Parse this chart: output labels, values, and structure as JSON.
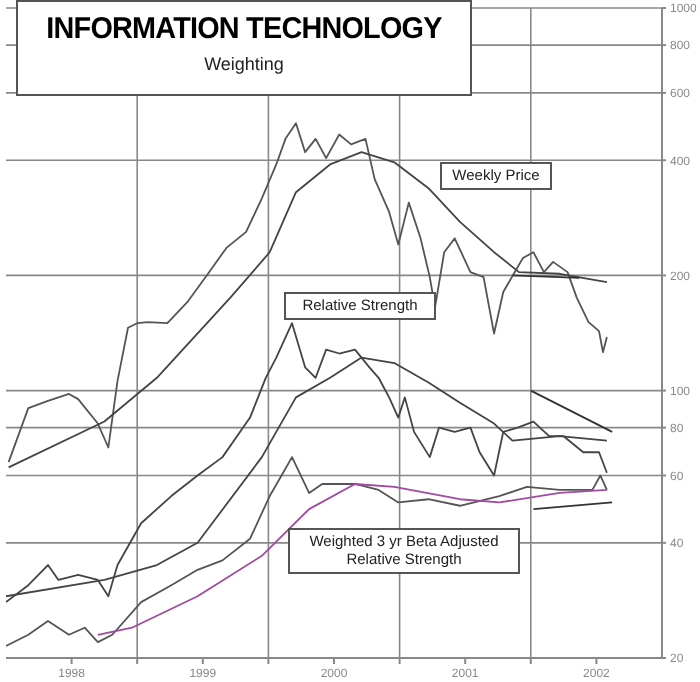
{
  "chart_data": {
    "type": "line",
    "title": "INFORMATION TECHNOLOGY",
    "subtitle": "Weighting",
    "log": "y",
    "grid": true,
    "xlim": [
      1998,
      2003
    ],
    "xticks": [
      {
        "value": 1998.5,
        "label": "1998"
      },
      {
        "value": 1999,
        "label": null
      },
      {
        "value": 1999.5,
        "label": "1999"
      },
      {
        "value": 2000,
        "label": null
      },
      {
        "value": 2000.5,
        "label": "2000"
      },
      {
        "value": 2001,
        "label": null
      },
      {
        "value": 2001.5,
        "label": "2001"
      },
      {
        "value": 2002,
        "label": null
      },
      {
        "value": 2002.5,
        "label": "2002"
      }
    ],
    "ylim": [
      20,
      1000
    ],
    "yticks": [
      20,
      40,
      60,
      80,
      100,
      200,
      400,
      600,
      800,
      1000
    ],
    "annotations": [
      "Weekly Price",
      "Relative Strength",
      "Weighted 3 yr Beta Adjusted Relative Strength"
    ],
    "series": [
      {
        "color": "#555555",
        "x": [
          1998.02,
          1998.17,
          1998.32,
          1998.48,
          1998.55,
          1998.7,
          1998.78,
          1998.85,
          1998.93,
          1999.0,
          1999.08,
          1999.23,
          1999.38,
          1999.53,
          1999.68,
          1999.83,
          1999.95,
          2000.06,
          2000.13,
          2000.21,
          2000.28,
          2000.36,
          2000.44,
          2000.54,
          2000.63,
          2000.74,
          2000.81,
          2000.92,
          2000.99,
          2001.07,
          2001.16,
          2001.23,
          2001.27,
          2001.34,
          2001.42,
          2001.54,
          2001.64,
          2001.72,
          2001.79,
          2001.94,
          2002.02,
          2002.1,
          2002.17,
          2002.28,
          2002.35,
          2002.44,
          2002.52,
          2002.55,
          2002.58
        ],
        "values": [
          65,
          90,
          94,
          98,
          95,
          82,
          71,
          106,
          146,
          150,
          151,
          150,
          170,
          200,
          236,
          260,
          318,
          390,
          455,
          500,
          420,
          455,
          405,
          467,
          440,
          455,
          357,
          293,
          241,
          310,
          250,
          198,
          165,
          230,
          250,
          204,
          198,
          141,
          181,
          222,
          230,
          204,
          217,
          204,
          175,
          151,
          143,
          126,
          138
        ]
      },
      {
        "color": "#444444",
        "x": [
          1998.02,
          1998.75,
          1999.15,
          1999.71,
          2000.01,
          2000.21,
          2000.47,
          2000.71,
          2000.96,
          2001.22,
          2001.46,
          2001.72,
          2001.91,
          2002.22,
          2002.58
        ],
        "values": [
          63,
          83,
          108,
          175,
          230,
          330,
          390,
          420,
          395,
          338,
          276,
          230,
          204,
          202,
          192
        ]
      },
      {
        "color": "#444444",
        "x": [
          1998.0,
          1998.17,
          1998.32,
          1998.4,
          1998.55,
          1998.7,
          1998.78,
          1998.85,
          1999.03,
          1999.26,
          1999.46,
          1999.65,
          1999.86,
          1999.98,
          2000.06,
          2000.18,
          2000.28,
          2000.36,
          2000.44,
          2000.54,
          2000.66,
          2000.77,
          2000.84,
          2000.92,
          2000.99,
          2001.04,
          2001.11,
          2001.23,
          2001.3,
          2001.42,
          2001.54,
          2001.61,
          2001.72,
          2001.79,
          2001.9,
          2002.02,
          2002.14,
          2002.25,
          2002.4,
          2002.52,
          2002.58
        ],
        "values": [
          28,
          31,
          35,
          32,
          33,
          32,
          29,
          35,
          45,
          53,
          60,
          67,
          85,
          108,
          122,
          150,
          115,
          108,
          128,
          125,
          128,
          115,
          108,
          96,
          85,
          96,
          78,
          67,
          80,
          78,
          80,
          69,
          60,
          78,
          80,
          83,
          76,
          76,
          69,
          69,
          61
        ]
      },
      {
        "color": "#444444",
        "x": [
          1998.0,
          1998.75,
          1999.15,
          1999.46,
          1999.95,
          2000.21,
          2000.47,
          2000.71,
          2000.96,
          2001.22,
          2001.46,
          2001.72,
          2001.86,
          2002.22,
          2002.58
        ],
        "values": [
          29,
          32,
          35,
          40,
          67,
          96,
          108,
          122,
          118,
          105,
          93,
          82,
          74,
          76,
          74
        ]
      },
      {
        "color": "#555555",
        "x": [
          1998.0,
          1998.17,
          1998.32,
          1998.48,
          1998.6,
          1998.7,
          1998.81,
          1999.03,
          1999.26,
          1999.46,
          1999.65,
          1999.86,
          2000.01,
          2000.1,
          2000.18,
          2000.31,
          2000.41,
          2000.66,
          2000.84,
          2000.99,
          2001.22,
          2001.46,
          2001.76,
          2001.97,
          2002.22,
          2002.47,
          2002.53,
          2002.58
        ],
        "values": [
          21.5,
          23,
          25,
          23,
          24,
          22,
          23,
          28,
          31,
          34,
          36,
          41,
          53,
          60,
          67,
          54,
          57,
          57,
          55,
          51,
          52,
          50,
          53,
          56,
          55,
          55,
          60,
          55
        ]
      },
      {
        "color": "#a04aa0",
        "x": [
          1998.7,
          1998.96,
          1999.46,
          1999.95,
          2000.31,
          2000.66,
          2000.96,
          2001.46,
          2001.76,
          2002.22,
          2002.58
        ],
        "values": [
          23,
          24,
          29,
          37,
          49,
          57,
          56,
          52,
          51,
          54,
          55
        ]
      },
      {
        "color": "#333333",
        "x": [
          2001.86,
          2002.37
        ],
        "values": [
          200,
          197
        ]
      },
      {
        "color": "#333333",
        "x": [
          2002.0,
          2002.62
        ],
        "values": [
          100,
          78
        ]
      },
      {
        "color": "#333333",
        "x": [
          2002.02,
          2002.62
        ],
        "values": [
          49,
          51
        ]
      }
    ]
  }
}
